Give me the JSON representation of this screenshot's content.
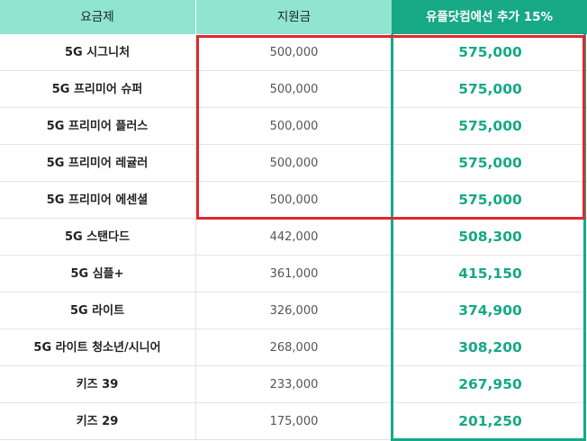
{
  "header": {
    "col_plan": "요금제",
    "col_subsidy": "지원금",
    "col_extra": "유플닷컴에선 추가 15%"
  },
  "rows": [
    {
      "plan": "5G 시그니처",
      "subsidy": "500,000",
      "extra": "575,000"
    },
    {
      "plan": "5G 프리미어 슈퍼",
      "subsidy": "500,000",
      "extra": "575,000"
    },
    {
      "plan": "5G 프리미어 플러스",
      "subsidy": "500,000",
      "extra": "575,000"
    },
    {
      "plan": "5G 프리미어 레귤러",
      "subsidy": "500,000",
      "extra": "575,000"
    },
    {
      "plan": "5G 프리미어 에센셜",
      "subsidy": "500,000",
      "extra": "575,000"
    },
    {
      "plan": "5G 스탠다드",
      "subsidy": "442,000",
      "extra": "508,300"
    },
    {
      "plan": "5G 심플+",
      "subsidy": "361,000",
      "extra": "415,150"
    },
    {
      "plan": "5G 라이트",
      "subsidy": "326,000",
      "extra": "374,900"
    },
    {
      "plan": "5G 라이트 청소년/시니어",
      "subsidy": "268,000",
      "extra": "308,200"
    },
    {
      "plan": "키즈 39",
      "subsidy": "233,000",
      "extra": "267,950"
    },
    {
      "plan": "키즈 29",
      "subsidy": "175,000",
      "extra": "201,250"
    }
  ],
  "colors": {
    "header_bg": "#8fe5d0",
    "accent_green": "#17a886",
    "highlight_red": "#e0282e"
  }
}
